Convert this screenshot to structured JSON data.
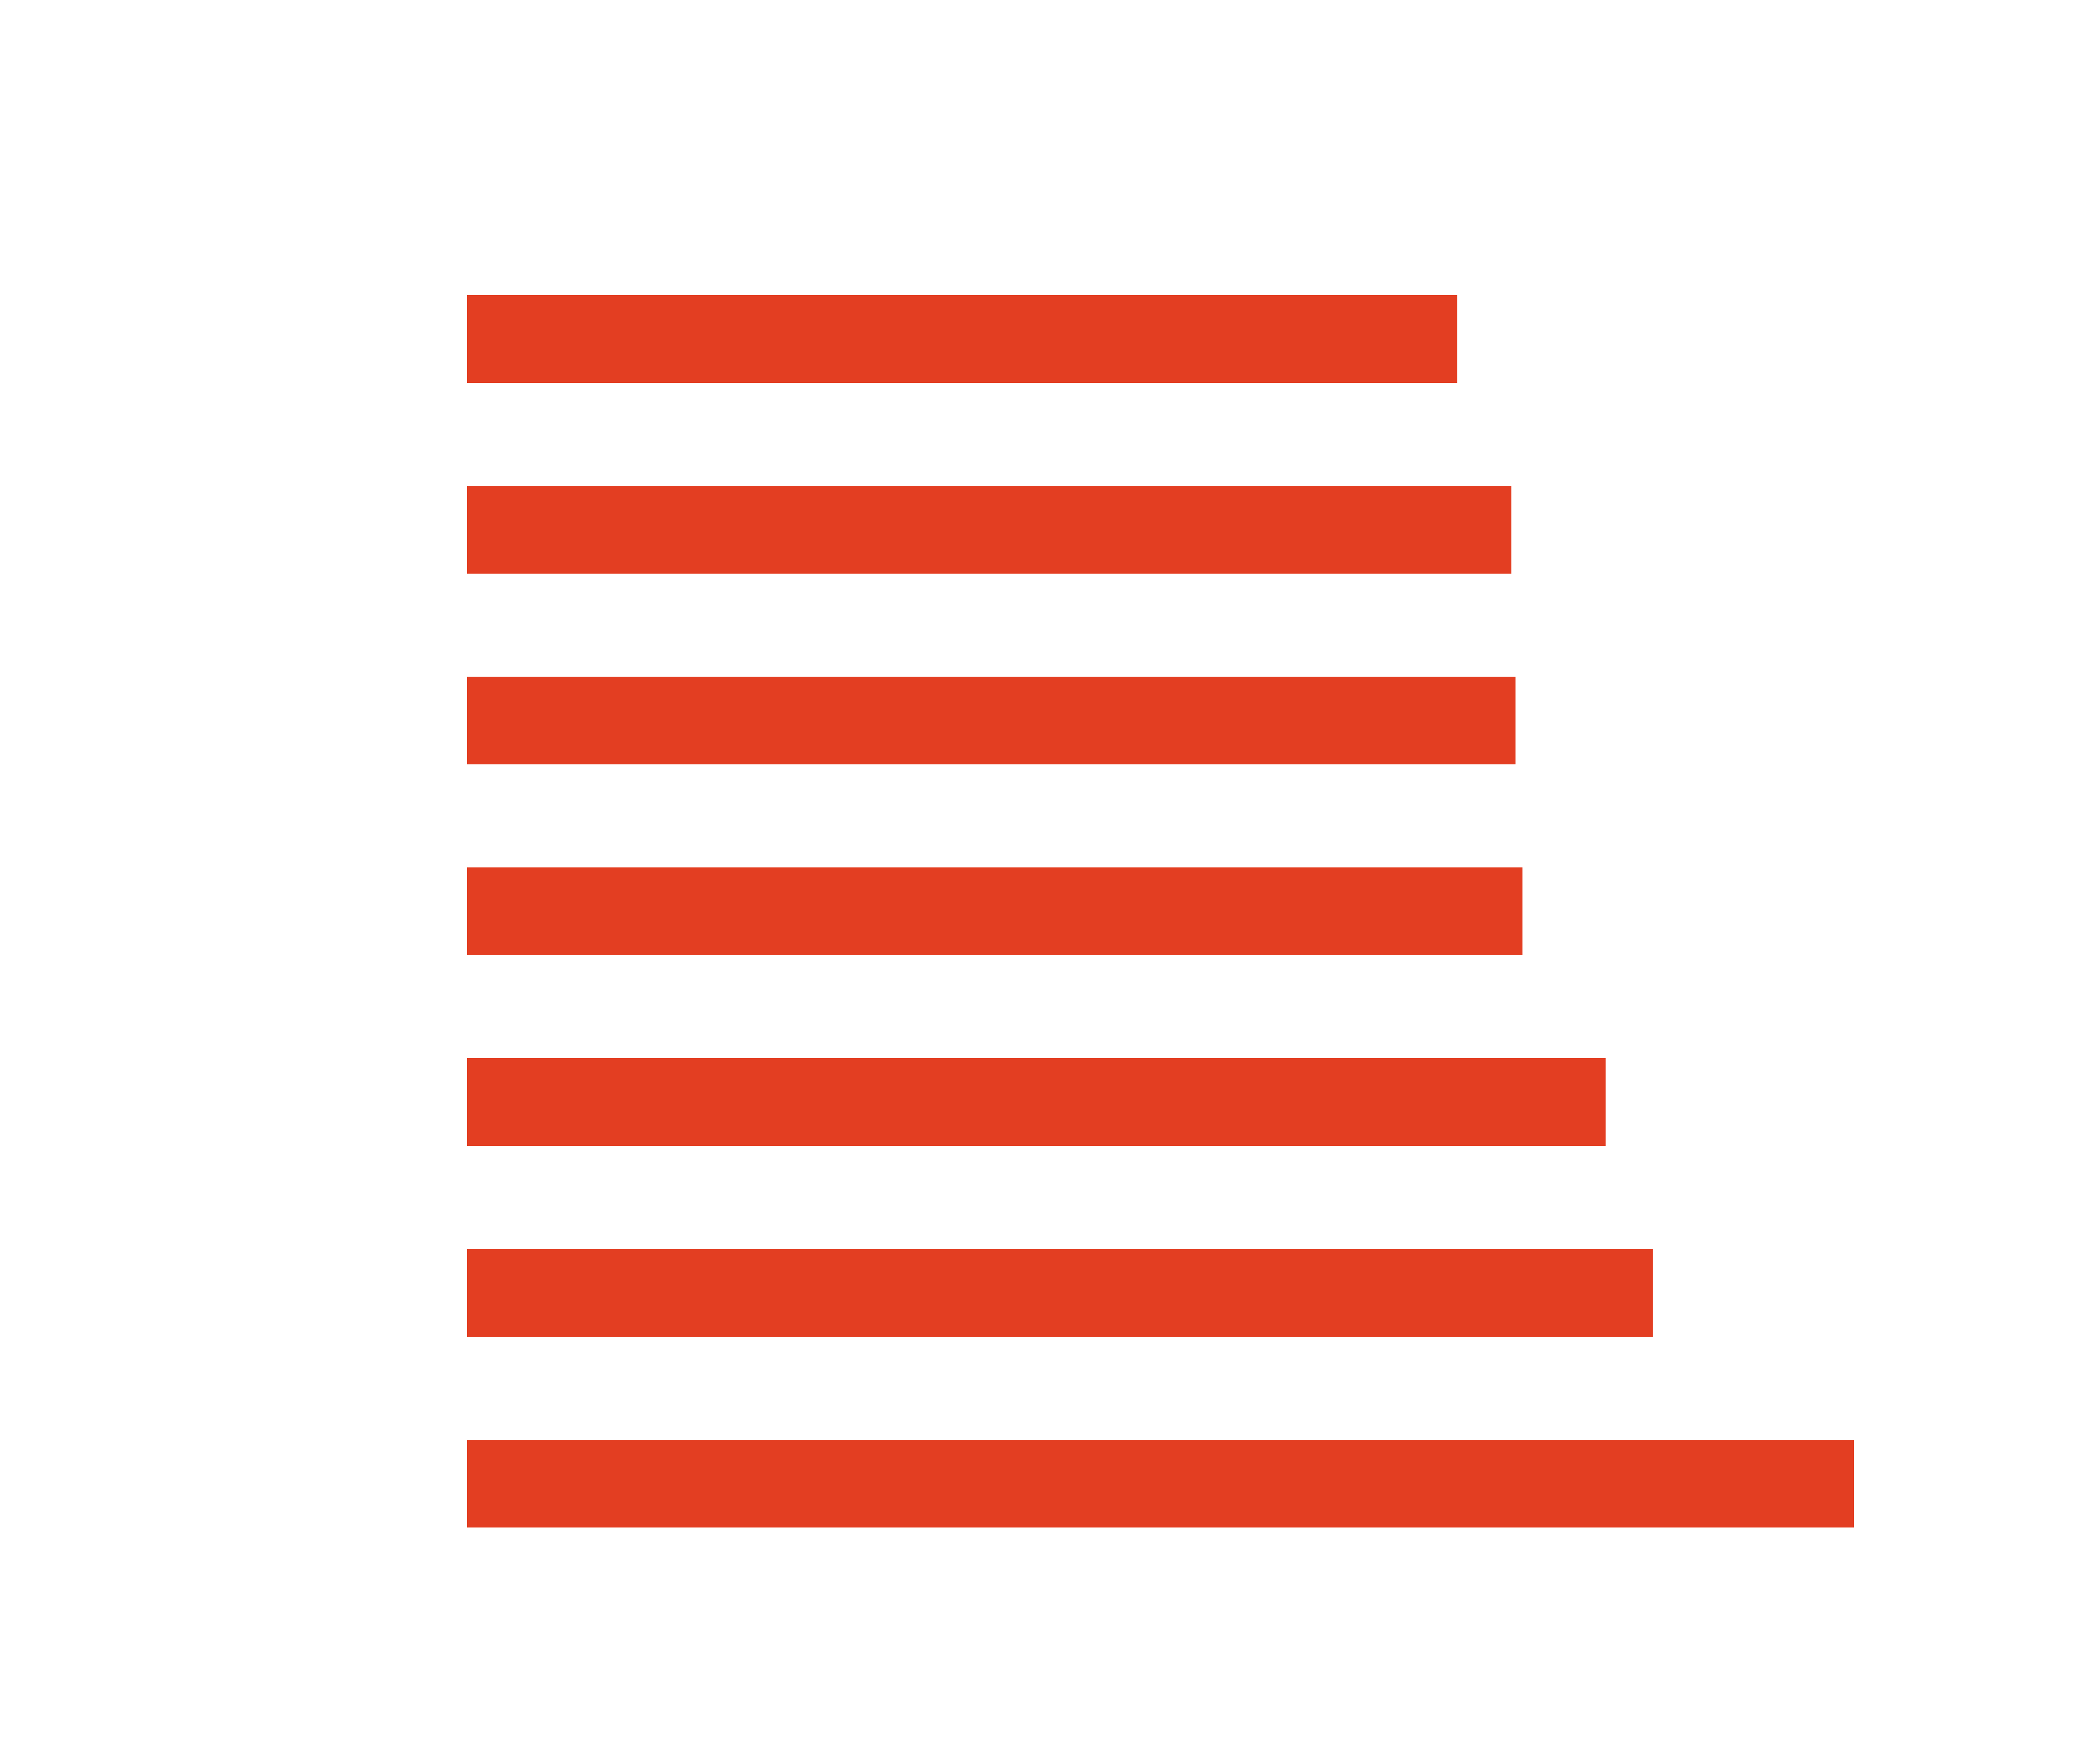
{
  "colors": {
    "background": "#ffffff",
    "bar": "#e33e22"
  },
  "chart_data": {
    "type": "bar",
    "orientation": "horizontal",
    "title": "",
    "xlabel": "",
    "ylabel": "",
    "grid": false,
    "legend": "none",
    "xlim": [
      0,
      1
    ],
    "categories": [
      "",
      "",
      "",
      "",
      "",
      "",
      ""
    ],
    "values": [
      0.714,
      0.753,
      0.756,
      0.761,
      0.821,
      0.855,
      1.0
    ]
  }
}
